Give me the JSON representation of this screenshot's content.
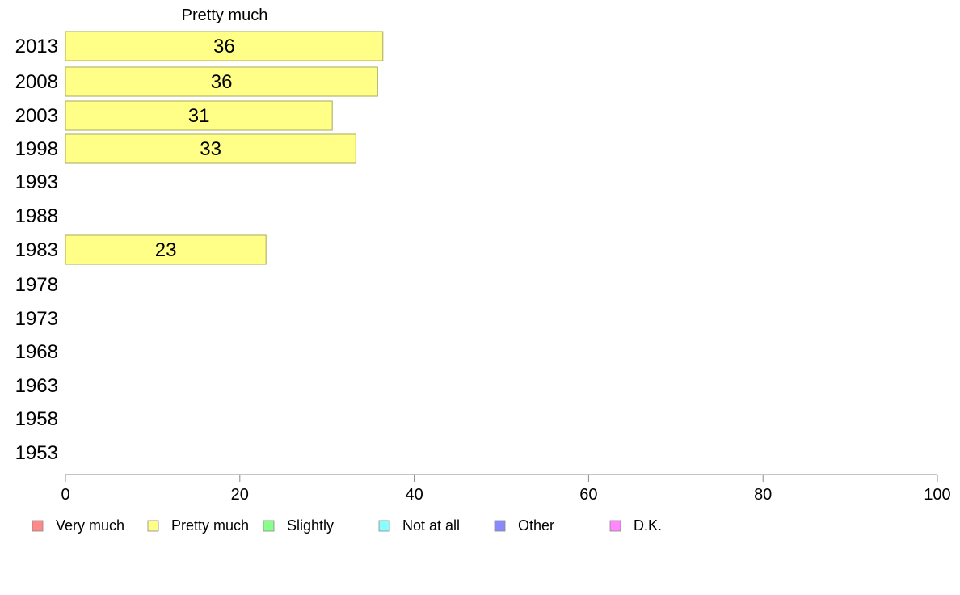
{
  "chart_data": {
    "type": "bar",
    "orientation": "horizontal",
    "title": "Pretty much",
    "categories": [
      "2013",
      "2008",
      "2003",
      "1998",
      "1993",
      "1988",
      "1983",
      "1978",
      "1973",
      "1968",
      "1963",
      "1958",
      "1953"
    ],
    "series": [
      {
        "name": "Pretty much",
        "values": [
          36.4,
          35.8,
          30.6,
          33.3,
          null,
          null,
          23.0,
          null,
          null,
          null,
          null,
          null,
          null
        ]
      }
    ],
    "data_labels": [
      "36",
      "36",
      "31",
      "33",
      "",
      "",
      "23",
      "",
      "",
      "",
      "",
      "",
      ""
    ],
    "xlim": [
      0,
      100
    ],
    "xticks": [
      "0",
      "20",
      "40",
      "60",
      "80",
      "100"
    ],
    "xtick_values": [
      0,
      20,
      40,
      60,
      80,
      100
    ],
    "grid": false,
    "legend": {
      "placement": "bottom",
      "items": [
        {
          "label": "Very much",
          "color": "#ff8888"
        },
        {
          "label": "Pretty much",
          "color": "#ffff88"
        },
        {
          "label": "Slightly",
          "color": "#88ff88"
        },
        {
          "label": "Not at all",
          "color": "#88ffff"
        },
        {
          "label": "Other",
          "color": "#8888ff"
        },
        {
          "label": "D.K.",
          "color": "#ff88ff"
        }
      ]
    },
    "bar_color": "#ffff88"
  }
}
